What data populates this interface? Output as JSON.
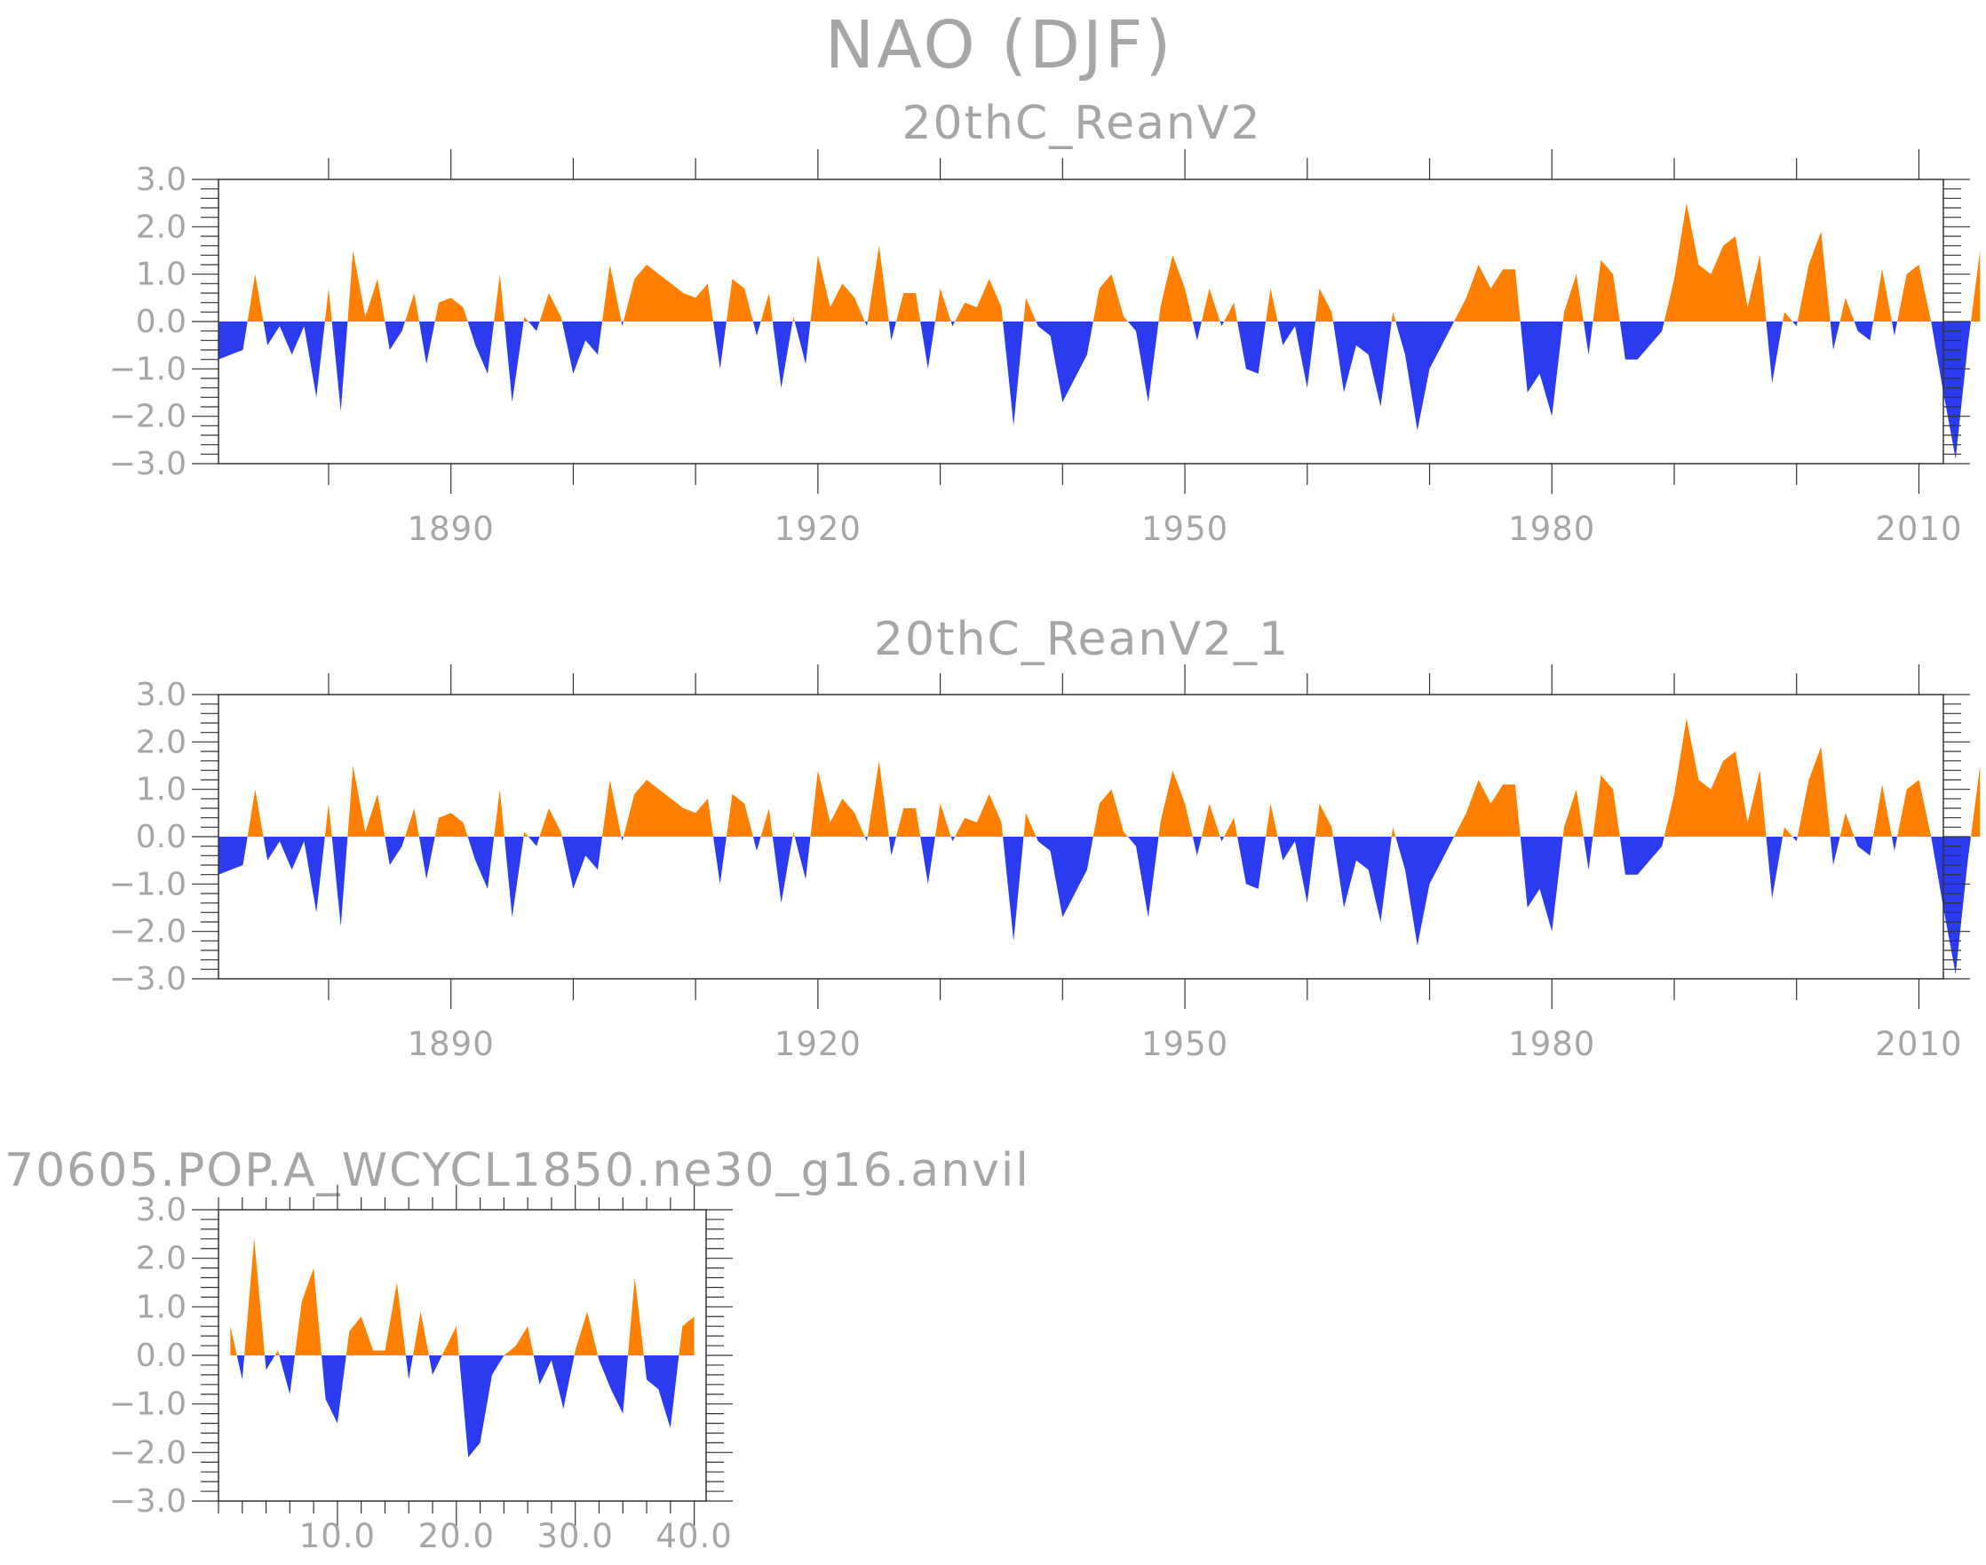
{
  "figure": {
    "title": "NAO (DJF)",
    "colors": {
      "positive": "#ff8000",
      "negative": "#2b3cf0",
      "axis": "#333333",
      "text": "#a6a6a6"
    }
  },
  "chart_data": [
    {
      "type": "area",
      "title": "20thC_ReanV2",
      "xlabel": "",
      "ylabel": "",
      "xlim": [
        1871,
        2012
      ],
      "ylim": [
        -3.0,
        3.0
      ],
      "grid": false,
      "legend": "none",
      "x_ticks": [
        "1890",
        "1920",
        "1950",
        "1980",
        "2010"
      ],
      "y_ticks": [
        "3.0",
        "2.0",
        "1.0",
        "0.0",
        "−1.0",
        "−2.0",
        "−3.0"
      ],
      "x_start": 1871,
      "values": [
        -0.8,
        -0.7,
        -0.6,
        1.0,
        -0.5,
        -0.1,
        -0.7,
        -0.1,
        -1.6,
        0.7,
        -1.9,
        1.5,
        0.1,
        0.9,
        -0.6,
        -0.2,
        0.6,
        -0.9,
        0.4,
        0.5,
        0.3,
        -0.5,
        -1.1,
        1.0,
        -1.7,
        0.1,
        -0.2,
        0.6,
        0.1,
        -1.1,
        -0.4,
        -0.7,
        1.2,
        -0.1,
        0.9,
        1.2,
        1.0,
        0.8,
        0.6,
        0.5,
        0.8,
        -1.0,
        0.9,
        0.7,
        -0.3,
        0.6,
        -1.4,
        0.1,
        -0.9,
        1.4,
        0.3,
        0.8,
        0.5,
        -0.1,
        1.6,
        -0.4,
        0.6,
        0.6,
        -1.0,
        0.7,
        -0.1,
        0.4,
        0.3,
        0.9,
        0.3,
        -2.2,
        0.5,
        -0.1,
        -0.3,
        -1.7,
        -1.2,
        -0.7,
        0.7,
        1.0,
        0.1,
        -0.2,
        -1.7,
        0.3,
        1.4,
        0.7,
        -0.4,
        0.7,
        -0.1,
        0.4,
        -1.0,
        -1.1,
        0.7,
        -0.5,
        -0.1,
        -1.4,
        0.7,
        0.2,
        -1.5,
        -0.5,
        -0.7,
        -1.8,
        0.2,
        -0.7,
        -2.3,
        -1.0,
        -0.5,
        0.0,
        0.5,
        1.2,
        0.7,
        1.1,
        1.1,
        -1.5,
        -1.1,
        -2.0,
        0.2,
        1.0,
        -0.7,
        1.3,
        1.0,
        -0.8,
        -0.8,
        -0.5,
        -0.2,
        0.9,
        2.5,
        1.2,
        1.0,
        1.6,
        1.8,
        0.3,
        1.4,
        -1.3,
        0.2,
        -0.1,
        1.2,
        1.9,
        -0.6,
        0.5,
        -0.2,
        -0.4,
        1.1,
        -0.3,
        1.0,
        1.2,
        0.0,
        -1.5,
        -2.9,
        -0.5,
        1.5
      ]
    },
    {
      "type": "area",
      "title": "20thC_ReanV2_1",
      "xlabel": "",
      "ylabel": "",
      "xlim": [
        1871,
        2012
      ],
      "ylim": [
        -3.0,
        3.0
      ],
      "grid": false,
      "legend": "none",
      "x_ticks": [
        "1890",
        "1920",
        "1950",
        "1980",
        "2010"
      ],
      "y_ticks": [
        "3.0",
        "2.0",
        "1.0",
        "0.0",
        "−1.0",
        "−2.0",
        "−3.0"
      ],
      "x_start": 1871,
      "values": [
        -0.8,
        -0.7,
        -0.6,
        1.0,
        -0.5,
        -0.1,
        -0.7,
        -0.1,
        -1.6,
        0.7,
        -1.9,
        1.5,
        0.1,
        0.9,
        -0.6,
        -0.2,
        0.6,
        -0.9,
        0.4,
        0.5,
        0.3,
        -0.5,
        -1.1,
        1.0,
        -1.7,
        0.1,
        -0.2,
        0.6,
        0.1,
        -1.1,
        -0.4,
        -0.7,
        1.2,
        -0.1,
        0.9,
        1.2,
        1.0,
        0.8,
        0.6,
        0.5,
        0.8,
        -1.0,
        0.9,
        0.7,
        -0.3,
        0.6,
        -1.4,
        0.1,
        -0.9,
        1.4,
        0.3,
        0.8,
        0.5,
        -0.1,
        1.6,
        -0.4,
        0.6,
        0.6,
        -1.0,
        0.7,
        -0.1,
        0.4,
        0.3,
        0.9,
        0.3,
        -2.2,
        0.5,
        -0.1,
        -0.3,
        -1.7,
        -1.2,
        -0.7,
        0.7,
        1.0,
        0.1,
        -0.2,
        -1.7,
        0.3,
        1.4,
        0.7,
        -0.4,
        0.7,
        -0.1,
        0.4,
        -1.0,
        -1.1,
        0.7,
        -0.5,
        -0.1,
        -1.4,
        0.7,
        0.2,
        -1.5,
        -0.5,
        -0.7,
        -1.8,
        0.2,
        -0.7,
        -2.3,
        -1.0,
        -0.5,
        0.0,
        0.5,
        1.2,
        0.7,
        1.1,
        1.1,
        -1.5,
        -1.1,
        -2.0,
        0.2,
        1.0,
        -0.7,
        1.3,
        1.0,
        -0.8,
        -0.8,
        -0.5,
        -0.2,
        0.9,
        2.5,
        1.2,
        1.0,
        1.6,
        1.8,
        0.3,
        1.4,
        -1.3,
        0.2,
        -0.1,
        1.2,
        1.9,
        -0.6,
        0.5,
        -0.2,
        -0.4,
        1.1,
        -0.3,
        1.0,
        1.2,
        0.0,
        -1.5,
        -2.9,
        -0.5,
        1.5
      ]
    },
    {
      "type": "area",
      "title": "70605.POP.A_WCYCL1850.ne30_g16.anvil",
      "xlabel": "",
      "ylabel": "",
      "xlim": [
        0,
        41
      ],
      "ylim": [
        -3.0,
        3.0
      ],
      "grid": false,
      "legend": "none",
      "x_ticks": [
        "10.0",
        "20.0",
        "30.0",
        "40.0"
      ],
      "y_ticks": [
        "3.0",
        "2.0",
        "1.0",
        "0.0",
        "−1.0",
        "−2.0",
        "−3.0"
      ],
      "x_start": 1,
      "values": [
        0.6,
        -0.5,
        2.4,
        -0.3,
        0.1,
        -0.8,
        1.1,
        1.8,
        -0.9,
        -1.4,
        0.5,
        0.8,
        0.1,
        0.1,
        1.5,
        -0.5,
        0.9,
        -0.4,
        0.1,
        0.6,
        -2.1,
        -1.8,
        -0.4,
        0.0,
        0.2,
        0.6,
        -0.6,
        -0.1,
        -1.1,
        0.1,
        0.9,
        -0.1,
        -0.7,
        -1.2,
        1.6,
        -0.5,
        -0.7,
        -1.5,
        0.6,
        0.8
      ]
    }
  ]
}
